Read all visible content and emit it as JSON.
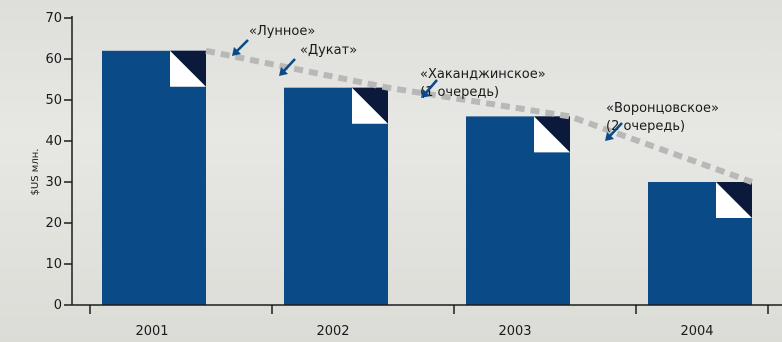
{
  "chart_data": {
    "type": "bar",
    "categories": [
      "2001",
      "2002",
      "2003",
      "2004"
    ],
    "values": [
      62,
      53,
      46,
      30
    ],
    "title": "",
    "xlabel": "",
    "ylabel": "$US млн.",
    "ylim": [
      0,
      70
    ],
    "yticks": [
      0,
      10,
      20,
      30,
      40,
      50,
      60,
      70
    ],
    "grid": false,
    "bar_color": "#0a4a86",
    "corner_dark_color": "#0b1a3a",
    "trend_color": "#b8b8b8",
    "arrow_color": "#0a4a86",
    "annotations": [
      {
        "lines": [
          "«Лунное»"
        ],
        "category": "2001"
      },
      {
        "lines": [
          "«Дукат»"
        ],
        "category": "2002"
      },
      {
        "lines": [
          "«Хаканджинское»",
          "(1 очередь)"
        ],
        "category": "2003"
      },
      {
        "lines": [
          "«Воронцовское»",
          "(2 очередь)"
        ],
        "category": "2004"
      }
    ]
  }
}
